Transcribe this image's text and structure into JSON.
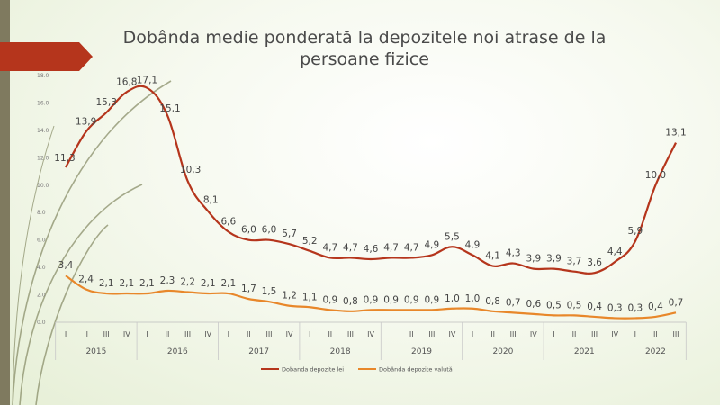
{
  "chart_data": {
    "type": "line",
    "title": "Dobânda medie ponderată la depozitele noi atrase de la persoane fizice",
    "title_lines": [
      "Dobânda medie ponderată la depozitele noi atrase de la",
      "persoane fizice"
    ],
    "ylim": [
      0,
      18
    ],
    "yticks": [
      "0.0",
      "2.0",
      "4.0",
      "6.0",
      "8.0",
      "10.0",
      "12.0",
      "14.0",
      "16.0",
      "18.0"
    ],
    "categories": [
      "I",
      "II",
      "III",
      "IV",
      "I",
      "II",
      "III",
      "IV",
      "I",
      "II",
      "III",
      "IV",
      "I",
      "II",
      "III",
      "IV",
      "I",
      "II",
      "III",
      "IV",
      "I",
      "II",
      "III",
      "IV",
      "I",
      "II",
      "III",
      "IV",
      "I",
      "II",
      "III"
    ],
    "years": [
      {
        "label": "2015",
        "start": 0,
        "end": 3
      },
      {
        "label": "2016",
        "start": 4,
        "end": 7
      },
      {
        "label": "2017",
        "start": 8,
        "end": 11
      },
      {
        "label": "2018",
        "start": 12,
        "end": 15
      },
      {
        "label": "2019",
        "start": 16,
        "end": 19
      },
      {
        "label": "2020",
        "start": 20,
        "end": 23
      },
      {
        "label": "2021",
        "start": 24,
        "end": 27
      },
      {
        "label": "2022",
        "start": 28,
        "end": 30
      }
    ],
    "series": [
      {
        "name": "Dobanda depozite lei",
        "color": "#b5351c",
        "values": [
          11.3,
          13.9,
          15.3,
          16.8,
          17.1,
          15.1,
          10.3,
          8.1,
          6.6,
          6.0,
          6.0,
          5.7,
          5.2,
          4.7,
          4.7,
          4.6,
          4.7,
          4.7,
          4.9,
          5.5,
          4.9,
          4.1,
          4.3,
          3.9,
          3.9,
          3.7,
          3.6,
          4.4,
          5.9,
          10.0,
          13.1
        ],
        "labels": [
          "11,3",
          "13,9",
          "15,3",
          "16,8",
          "17,1",
          "15,1",
          "10,3",
          "8,1",
          "6,6",
          "6,0",
          "6,0",
          "5,7",
          "5,2",
          "4,7",
          "4,7",
          "4,6",
          "4,7",
          "4,7",
          "4,9",
          "5,5",
          "4,9",
          "4,1",
          "4,3",
          "3,9",
          "3,9",
          "3,7",
          "3,6",
          "4,4",
          "5,9",
          "10,0",
          "13,1"
        ]
      },
      {
        "name": "Dobânda depozite valută",
        "color": "#e8872a",
        "values": [
          3.4,
          2.4,
          2.1,
          2.1,
          2.1,
          2.3,
          2.2,
          2.1,
          2.1,
          1.7,
          1.5,
          1.2,
          1.1,
          0.9,
          0.8,
          0.9,
          0.9,
          0.9,
          0.9,
          1.0,
          1.0,
          0.8,
          0.7,
          0.6,
          0.5,
          0.5,
          0.4,
          0.3,
          0.3,
          0.4,
          0.7
        ],
        "labels": [
          "3,4",
          "2,4",
          "2,1",
          "2,1",
          "2,1",
          "2,3",
          "2,2",
          "2,1",
          "2,1",
          "1,7",
          "1,5",
          "1,2",
          "1,1",
          "0,9",
          "0,8",
          "0,9",
          "0,9",
          "0,9",
          "0,9",
          "1,0",
          "1,0",
          "0,8",
          "0,7",
          "0,6",
          "0,5",
          "0,5",
          "0,4",
          "0,3",
          "0,3",
          "0,4",
          "0,7"
        ]
      }
    ],
    "grid": false,
    "legend_position": "bottom"
  },
  "theme": {
    "sidebar_color": "#7f7a5f",
    "arrow_color": "#b5351c",
    "swoosh_color": "#8a8f6a"
  }
}
